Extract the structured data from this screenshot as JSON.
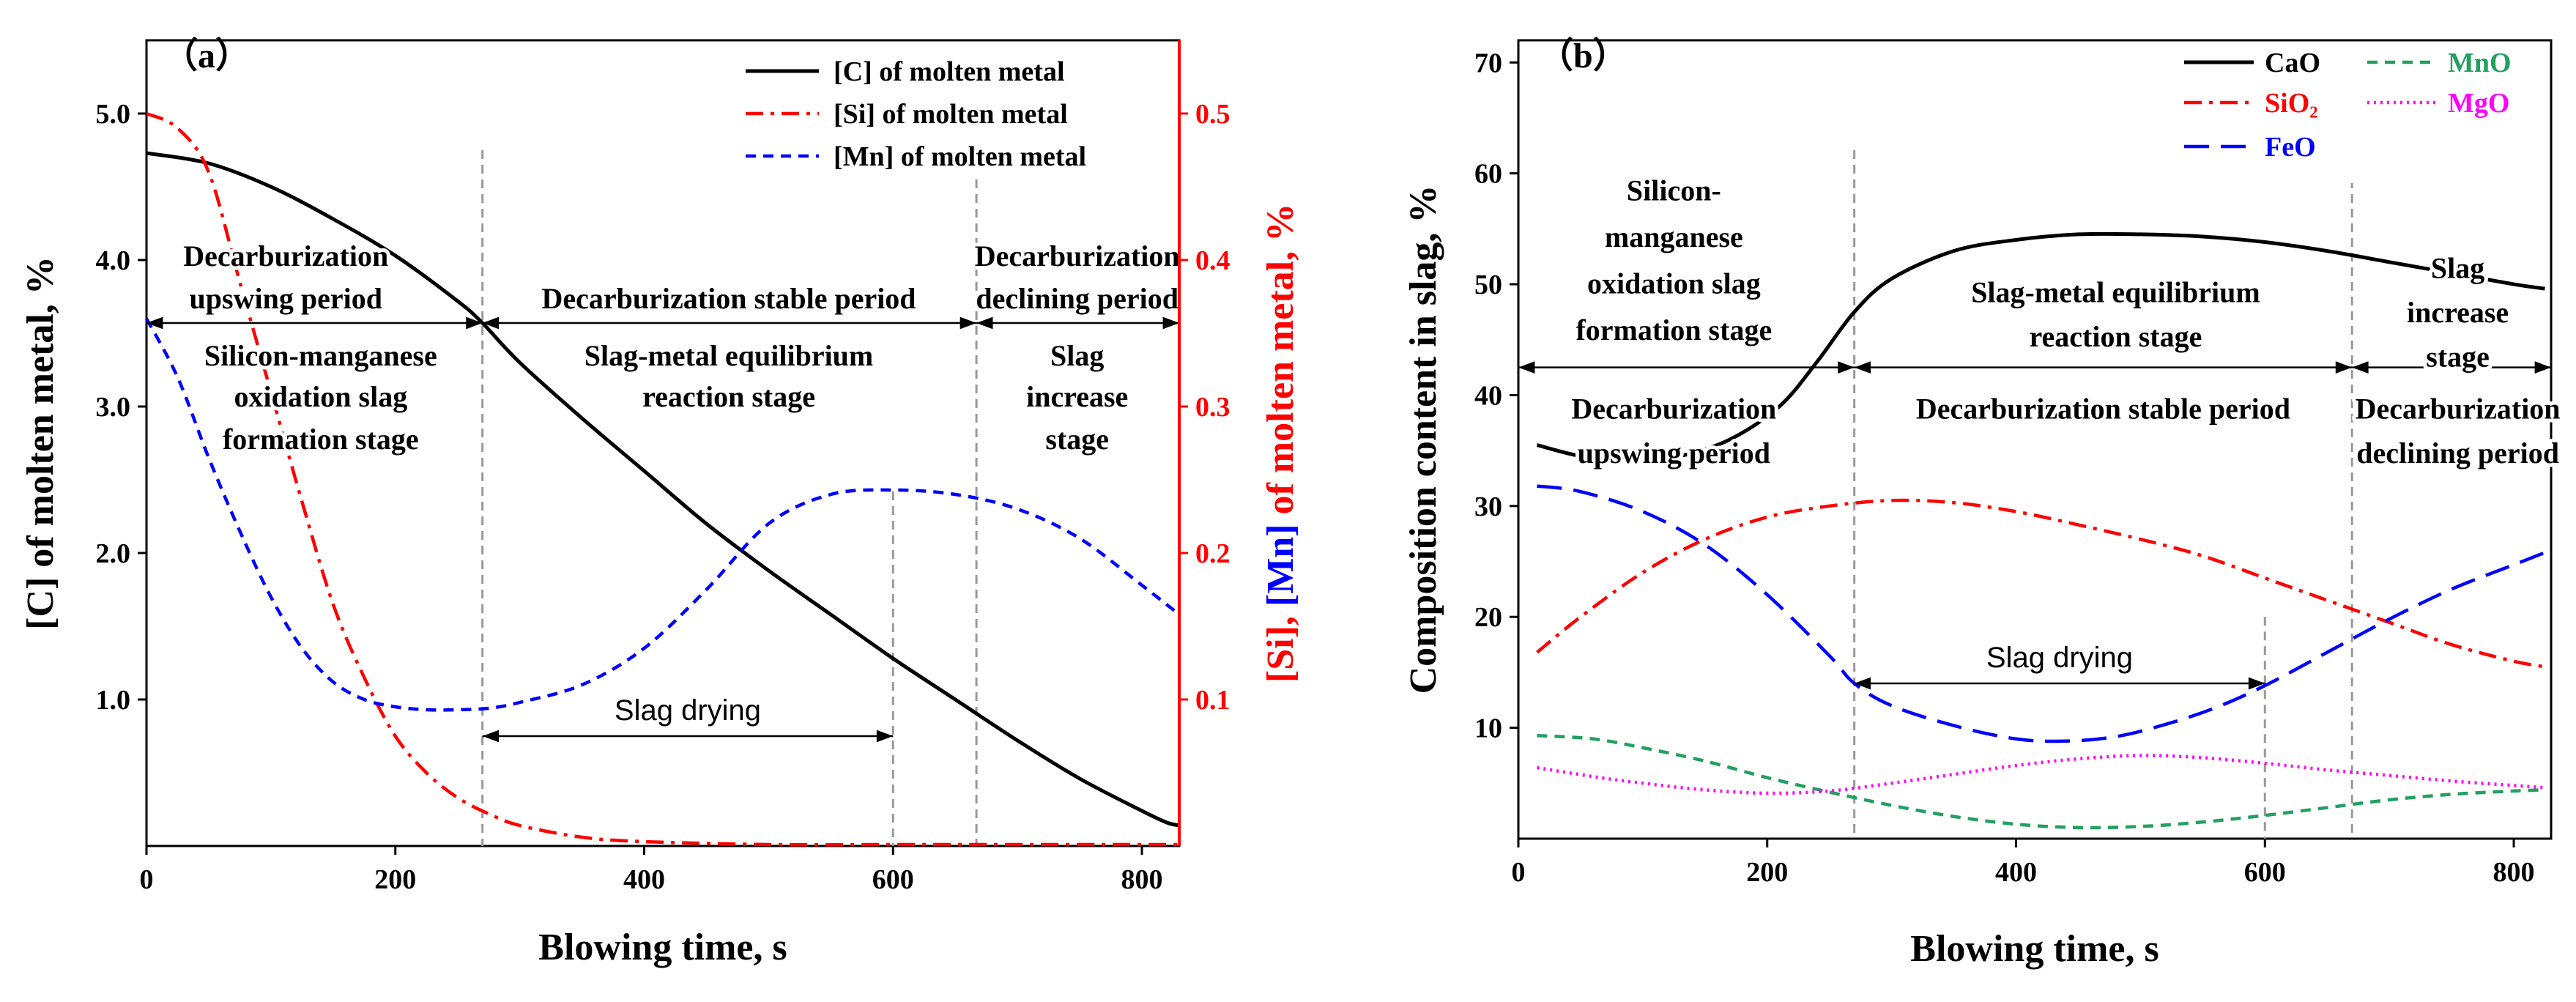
{
  "chart_data": [
    {
      "type": "line",
      "panel_label": "（a）",
      "xlabel": "Blowing time, s",
      "ylabel": "[C] of molten metal, %",
      "y2label_parts": [
        "[Si]",
        ", ",
        "[Mn]",
        " of molten metal, %"
      ],
      "xlim": [
        0,
        830
      ],
      "ylim": [
        0,
        5.5
      ],
      "y2lim": [
        0,
        0.55
      ],
      "x_ticks": [
        "0",
        "200",
        "400",
        "600",
        "800"
      ],
      "y_ticks": [
        "1.0",
        "2.0",
        "3.0",
        "4.0",
        "5.0"
      ],
      "y2_ticks": [
        "0.1",
        "0.2",
        "0.3",
        "0.4",
        "0.5"
      ],
      "grid": false,
      "legend_position": "top-right",
      "series": [
        {
          "name": "[C] of molten metal",
          "axis": "left",
          "color": "#000000",
          "dash": "solid",
          "x": [
            0,
            50,
            100,
            150,
            200,
            250,
            270,
            300,
            350,
            400,
            450,
            500,
            550,
            600,
            650,
            700,
            750,
            800,
            820,
            830
          ],
          "y": [
            4.73,
            4.66,
            4.5,
            4.28,
            4.03,
            3.72,
            3.57,
            3.3,
            2.92,
            2.56,
            2.2,
            1.88,
            1.58,
            1.28,
            1.0,
            0.72,
            0.46,
            0.24,
            0.16,
            0.14
          ]
        },
        {
          "name": "[Si] of molten metal",
          "axis": "right",
          "color": "#ff0000",
          "dash": "dashdot",
          "x": [
            0,
            25,
            50,
            75,
            100,
            125,
            150,
            175,
            200,
            225,
            250,
            275,
            300,
            350,
            400,
            500,
            600,
            700,
            800,
            830
          ],
          "y": [
            0.5,
            0.49,
            0.46,
            0.385,
            0.31,
            0.235,
            0.165,
            0.115,
            0.075,
            0.05,
            0.033,
            0.022,
            0.014,
            0.006,
            0.003,
            0.001,
            0.001,
            0.001,
            0.001,
            0.001
          ]
        },
        {
          "name": "[Mn] of molten metal",
          "axis": "right",
          "color": "#0000ff",
          "dash": "dashed",
          "x": [
            0,
            25,
            50,
            75,
            100,
            125,
            150,
            175,
            200,
            225,
            250,
            275,
            300,
            350,
            400,
            450,
            500,
            550,
            600,
            650,
            700,
            750,
            800,
            830
          ],
          "y": [
            0.36,
            0.32,
            0.265,
            0.215,
            0.17,
            0.135,
            0.112,
            0.1,
            0.095,
            0.093,
            0.093,
            0.094,
            0.098,
            0.11,
            0.135,
            0.175,
            0.22,
            0.24,
            0.243,
            0.24,
            0.23,
            0.21,
            0.178,
            0.158
          ]
        }
      ],
      "vlines": [
        270,
        667
      ],
      "vline_short": {
        "x": 600,
        "y_from": 0,
        "y_to": 2.42
      },
      "stage_arrows": [
        {
          "x0": 0,
          "x1": 270,
          "y": 3.57
        },
        {
          "x0": 270,
          "x1": 667,
          "y": 3.57
        },
        {
          "x0": 667,
          "x1": 830,
          "y": 3.57
        }
      ],
      "slag_drying_arrow": {
        "x0": 270,
        "x1": 600,
        "y": 0.75,
        "label": "Slag drying"
      },
      "annotations": [
        {
          "lines": [
            "Decarburization",
            "upswing period"
          ],
          "x": 112,
          "y": [
            4.03,
            3.74
          ]
        },
        {
          "lines": [
            "Decarburization stable period"
          ],
          "x": 468,
          "y": [
            3.74
          ]
        },
        {
          "lines": [
            "Decarburization",
            "declining period"
          ],
          "x": 748,
          "y": [
            4.03,
            3.74
          ]
        },
        {
          "lines": [
            "Silicon-manganese",
            "oxidation slag",
            "formation stage"
          ],
          "x": 140,
          "y": [
            3.35,
            3.07,
            2.78
          ]
        },
        {
          "lines": [
            "Slag-metal equilibrium",
            "reaction stage"
          ],
          "x": 468,
          "y": [
            3.35,
            3.07
          ]
        },
        {
          "lines": [
            "Slag",
            "increase",
            "stage"
          ],
          "x": 748,
          "y": [
            3.35,
            3.07,
            2.78
          ]
        }
      ]
    },
    {
      "type": "line",
      "panel_label": "（b）",
      "xlabel": "Blowing time, s",
      "ylabel": "Composition content in slag, %",
      "xlim": [
        0,
        830
      ],
      "ylim": [
        0,
        72
      ],
      "x_ticks": [
        "0",
        "200",
        "400",
        "600",
        "800"
      ],
      "y_ticks": [
        "10",
        "20",
        "30",
        "40",
        "50",
        "60",
        "70"
      ],
      "grid": false,
      "legend_position": "top-right",
      "series": [
        {
          "name": "CaO",
          "color": "#000000",
          "dash": "solid",
          "x": [
            15,
            50,
            90,
            130,
            170,
            210,
            240,
            270,
            300,
            350,
            400,
            450,
            500,
            550,
            600,
            650,
            700,
            750,
            800,
            825
          ],
          "y": [
            35.5,
            34.5,
            34,
            34.5,
            36,
            39,
            43,
            47.5,
            50.5,
            53,
            54,
            54.5,
            54.5,
            54.3,
            53.8,
            53,
            52,
            51,
            50,
            49.6
          ]
        },
        {
          "name": "SiO₂",
          "color": "#ff0000",
          "dash": "dashdot",
          "x": [
            15,
            50,
            100,
            150,
            200,
            250,
            300,
            350,
            400,
            450,
            500,
            550,
            600,
            650,
            700,
            750,
            800,
            825
          ],
          "y": [
            16.8,
            20,
            24,
            27,
            29,
            30,
            30.5,
            30.3,
            29.5,
            28.3,
            27,
            25.5,
            23.5,
            21.5,
            19.5,
            17.5,
            16,
            15.5
          ]
        },
        {
          "name": "FeO",
          "color": "#0000ff",
          "dash": "longdash",
          "x": [
            15,
            50,
            100,
            150,
            200,
            250,
            270,
            300,
            350,
            400,
            440,
            480,
            520,
            560,
            600,
            650,
            700,
            750,
            800,
            825
          ],
          "y": [
            31.8,
            31.3,
            29.5,
            26.5,
            22,
            16.5,
            14,
            12,
            10.2,
            9,
            8.8,
            9.2,
            10.3,
            11.8,
            13.8,
            16.8,
            19.8,
            22.5,
            24.7,
            25.8
          ]
        },
        {
          "name": "MnO",
          "color": "#22a060",
          "dash": "dashed",
          "x": [
            15,
            60,
            100,
            150,
            200,
            250,
            300,
            350,
            400,
            450,
            500,
            550,
            600,
            650,
            700,
            750,
            800,
            825
          ],
          "y": [
            9.3,
            9,
            8.2,
            7,
            5.5,
            4.2,
            3,
            2,
            1.3,
            1,
            1.1,
            1.5,
            2.1,
            2.8,
            3.5,
            4,
            4.3,
            4.4
          ]
        },
        {
          "name": "MgO",
          "color": "#ff00ff",
          "dash": "dotted",
          "x": [
            15,
            60,
            100,
            150,
            200,
            250,
            300,
            350,
            400,
            450,
            500,
            550,
            600,
            650,
            700,
            750,
            800,
            825
          ],
          "y": [
            6.4,
            5.6,
            5,
            4.4,
            4.1,
            4.3,
            5,
            5.8,
            6.6,
            7.2,
            7.5,
            7.3,
            6.8,
            6.2,
            5.7,
            5.2,
            4.8,
            4.6
          ]
        }
      ],
      "vlines": [
        270,
        670
      ],
      "vline_short": {
        "x": 600,
        "y_from": 0,
        "y_to": 20
      },
      "stage_arrows": [
        {
          "x0": 0,
          "x1": 270,
          "y": 42.5
        },
        {
          "x0": 270,
          "x1": 670,
          "y": 42.5
        },
        {
          "x0": 670,
          "x1": 830,
          "y": 42.5
        }
      ],
      "slag_drying_arrow": {
        "x0": 270,
        "x1": 600,
        "y": 14,
        "label": "Slag drying"
      },
      "annotations": [
        {
          "lines": [
            "Silicon-",
            "manganese",
            "oxidation slag",
            "formation stage"
          ],
          "x": 125,
          "y": [
            58.5,
            54.3,
            50.1,
            45.9
          ]
        },
        {
          "lines": [
            "Slag-metal equilibrium",
            "reaction stage"
          ],
          "x": 480,
          "y": [
            49.3,
            45.3
          ]
        },
        {
          "lines": [
            "Slag",
            "increase",
            "stage"
          ],
          "x": 755,
          "y": [
            51.5,
            47.5,
            43.5
          ]
        },
        {
          "lines": [
            "Decarburization",
            "upswing period"
          ],
          "x": 125,
          "y": [
            38.8,
            34.8
          ]
        },
        {
          "lines": [
            "Decarburization stable period"
          ],
          "x": 470,
          "y": [
            38.8
          ]
        },
        {
          "lines": [
            "Decarburization",
            "declining period"
          ],
          "x": 755,
          "y": [
            38.8,
            34.8
          ]
        }
      ]
    }
  ]
}
